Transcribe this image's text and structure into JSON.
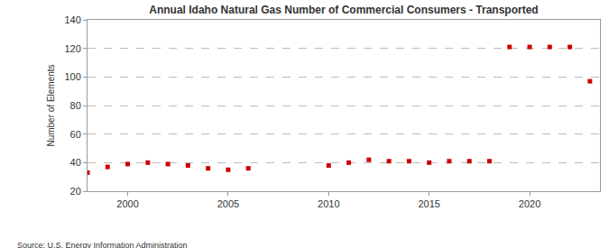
{
  "chart_data": {
    "type": "scatter",
    "title": "Annual Idaho Natural Gas Number of Commercial Consumers - Transported",
    "y_label": "Number of Elements",
    "annotations": [
      "Source: U.S. Energy Information Administration"
    ],
    "x": [
      1998,
      1999,
      2000,
      2001,
      2002,
      2003,
      2004,
      2005,
      2006,
      2010,
      2011,
      2012,
      2013,
      2014,
      2015,
      2016,
      2017,
      2018,
      2019,
      2020,
      2021,
      2022,
      2023
    ],
    "values": [
      33,
      37,
      39,
      40,
      39,
      38,
      36,
      35,
      36,
      38,
      40,
      42,
      41,
      41,
      40,
      41,
      41,
      41,
      121,
      121,
      121,
      121,
      97
    ],
    "color": "#cc0000",
    "marker": "square",
    "xlim": [
      1998,
      2023.5
    ],
    "xticks": [
      2000,
      2005,
      2010,
      2015,
      2020
    ],
    "ylim": [
      20,
      140
    ],
    "yticks": [
      20,
      40,
      60,
      80,
      100,
      120,
      140
    ],
    "grid": true
  }
}
